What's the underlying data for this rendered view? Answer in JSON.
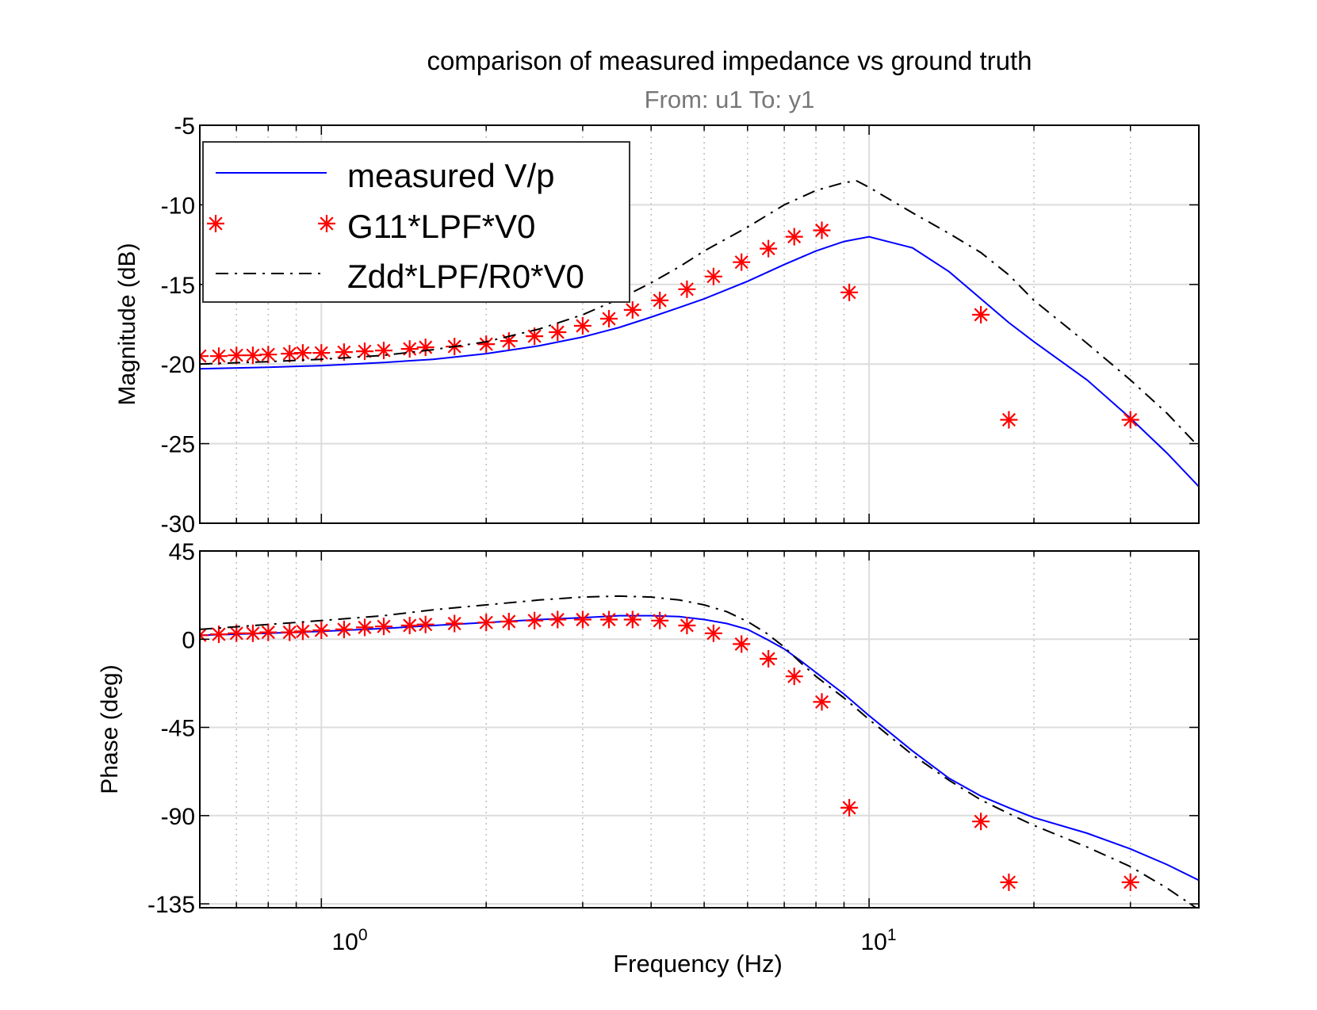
{
  "title": "comparison of measured impedance vs ground truth",
  "subtitle": "From: u1  To: y1",
  "xlabel": "Frequency  (Hz)",
  "colors": {
    "measured": "#0000ff",
    "g11": "#ff0000",
    "zdd": "#000000",
    "grid": "#dcdcdc",
    "subtitle": "#777777"
  },
  "chart_data": [
    {
      "type": "line",
      "panel": "magnitude",
      "ylabel": "Magnitude (dB)",
      "xscale": "log",
      "xlim": [
        0.6,
        40
      ],
      "ylim": [
        -30,
        -5
      ],
      "yticks": [
        -30,
        -25,
        -20,
        -15,
        -10,
        -5
      ],
      "ytick_labels": [
        "-30",
        "-25",
        "-20",
        "-15",
        "-10",
        "-5"
      ],
      "xticks": [
        1,
        10
      ],
      "xtick_labels": [
        {
          "base": "10",
          "exp": "0"
        },
        {
          "base": "10",
          "exp": "1"
        }
      ],
      "grid": true,
      "legend": {
        "position": "top-left",
        "entries": [
          "measured V/p",
          "G11*LPF*V0",
          "Zdd*LPF/R0*V0"
        ]
      },
      "series": [
        {
          "name": "measured V/p",
          "style": "solid",
          "x": [
            0.6,
            0.8,
            1.0,
            1.3,
            1.6,
            2.0,
            2.5,
            3.0,
            3.5,
            4.0,
            4.5,
            5.0,
            6.0,
            7.0,
            8.0,
            9.0,
            10.0,
            12.0,
            14.0,
            16.0,
            18.0,
            20.0,
            25.0,
            30.0,
            35.0,
            40.0
          ],
          "y": [
            -20.3,
            -20.2,
            -20.1,
            -19.9,
            -19.7,
            -19.35,
            -18.85,
            -18.3,
            -17.7,
            -17.05,
            -16.45,
            -15.9,
            -14.8,
            -13.75,
            -12.9,
            -12.3,
            -12.0,
            -12.7,
            -14.2,
            -15.9,
            -17.4,
            -18.6,
            -21.0,
            -23.4,
            -25.6,
            -27.7
          ]
        },
        {
          "name": "G11*LPF*V0",
          "style": "markers",
          "x": [
            0.6,
            0.65,
            0.7,
            0.75,
            0.8,
            0.875,
            0.925,
            1.0,
            1.1,
            1.2,
            1.3,
            1.45,
            1.55,
            1.75,
            2.0,
            2.2,
            2.45,
            2.7,
            3.0,
            3.35,
            3.7,
            4.15,
            4.65,
            5.2,
            5.85,
            6.55,
            7.3,
            8.2,
            9.2,
            16.0,
            18.0,
            30.0
          ],
          "y": [
            -19.5,
            -19.5,
            -19.45,
            -19.45,
            -19.4,
            -19.35,
            -19.3,
            -19.3,
            -19.25,
            -19.2,
            -19.15,
            -19.05,
            -18.95,
            -18.9,
            -18.75,
            -18.55,
            -18.25,
            -18.0,
            -17.6,
            -17.15,
            -16.6,
            -16.0,
            -15.3,
            -14.5,
            -13.6,
            -12.75,
            -12.0,
            -11.6,
            -15.5,
            -16.9,
            -23.5,
            -23.5
          ]
        },
        {
          "name": "Zdd*LPF/R0*V0",
          "style": "dashdot",
          "x": [
            0.6,
            0.8,
            1.0,
            1.3,
            1.6,
            2.0,
            2.5,
            3.0,
            3.5,
            4.0,
            4.5,
            5.0,
            6.0,
            7.0,
            8.0,
            9.0,
            9.5,
            10.0,
            12.0,
            14.0,
            16.0,
            18.0,
            20.0,
            25.0,
            30.0,
            35.0,
            40.0
          ],
          "y": [
            -20.0,
            -19.85,
            -19.7,
            -19.45,
            -19.1,
            -18.6,
            -17.8,
            -16.9,
            -15.9,
            -14.9,
            -13.9,
            -12.9,
            -11.4,
            -10.0,
            -9.1,
            -8.6,
            -8.5,
            -8.9,
            -10.5,
            -11.8,
            -13.0,
            -14.4,
            -16.0,
            -18.7,
            -21.0,
            -23.1,
            -25.2
          ]
        }
      ]
    },
    {
      "type": "line",
      "panel": "phase",
      "ylabel": "Phase (deg)",
      "xscale": "log",
      "xlim": [
        0.6,
        40
      ],
      "ylim": [
        -137,
        45
      ],
      "yticks": [
        -135,
        -90,
        -45,
        0,
        45
      ],
      "ytick_labels": [
        "-135",
        "-90",
        "-45",
        "0",
        "45"
      ],
      "xticks": [
        1,
        10
      ],
      "xtick_labels": [
        {
          "base": "10",
          "exp": "0"
        },
        {
          "base": "10",
          "exp": "1"
        }
      ],
      "grid": true,
      "series": [
        {
          "name": "measured V/p",
          "style": "solid",
          "x": [
            0.6,
            0.8,
            1.0,
            1.3,
            1.6,
            2.0,
            2.5,
            3.0,
            3.5,
            4.0,
            4.5,
            5.0,
            5.5,
            6.0,
            6.5,
            7.0,
            7.5,
            8.0,
            9.0,
            10.0,
            12.0,
            14.0,
            16.0,
            18.0,
            20.0,
            25.0,
            30.0,
            35.0,
            40.0
          ],
          "y": [
            2.0,
            3.0,
            4.0,
            5.5,
            7.0,
            8.5,
            10.0,
            11.0,
            12.0,
            12.0,
            11.5,
            10.0,
            8.0,
            5.0,
            0.0,
            -5.0,
            -11.0,
            -17.0,
            -28.0,
            -39.0,
            -57.0,
            -71.0,
            -80.0,
            -86.0,
            -91.0,
            -99.0,
            -107.0,
            -115.0,
            -123.0
          ]
        },
        {
          "name": "G11*LPF*V0",
          "style": "markers",
          "x": [
            0.6,
            0.65,
            0.7,
            0.75,
            0.8,
            0.875,
            0.925,
            1.0,
            1.1,
            1.2,
            1.3,
            1.45,
            1.55,
            1.75,
            2.0,
            2.2,
            2.45,
            2.7,
            3.0,
            3.35,
            3.7,
            4.15,
            4.65,
            5.2,
            5.85,
            6.55,
            7.3,
            8.2,
            9.2,
            16.0,
            18.0,
            30.0
          ],
          "y": [
            2.0,
            2.5,
            3.0,
            3.0,
            3.5,
            3.5,
            4.0,
            4.5,
            5.0,
            6.0,
            6.5,
            7.0,
            7.5,
            8.0,
            8.5,
            9.0,
            9.5,
            10.0,
            10.0,
            10.0,
            10.0,
            9.5,
            7.0,
            3.0,
            -2.5,
            -10.0,
            -19.0,
            -32.0,
            -86.0,
            -93.0,
            -124.0,
            -124.0
          ]
        },
        {
          "name": "Zdd*LPF/R0*V0",
          "style": "dashdot",
          "x": [
            0.6,
            0.8,
            1.0,
            1.3,
            1.6,
            2.0,
            2.5,
            3.0,
            3.5,
            4.0,
            4.5,
            5.0,
            5.5,
            6.0,
            6.5,
            7.0,
            7.5,
            8.0,
            9.0,
            10.0,
            12.0,
            14.0,
            16.0,
            18.0,
            20.0,
            25.0,
            30.0,
            35.0,
            40.0
          ],
          "y": [
            5.0,
            7.5,
            9.5,
            12.0,
            15.0,
            17.5,
            20.0,
            21.5,
            22.0,
            21.5,
            20.0,
            17.5,
            14.0,
            9.0,
            3.0,
            -4.0,
            -12.0,
            -19.0,
            -30.0,
            -41.0,
            -59.0,
            -72.0,
            -82.0,
            -89.0,
            -95.0,
            -106.0,
            -116.0,
            -127.0,
            -138.0
          ]
        }
      ]
    }
  ]
}
